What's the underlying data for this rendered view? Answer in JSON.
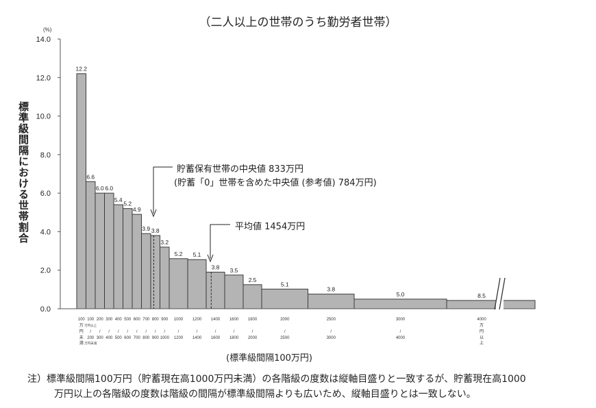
{
  "chart_data": {
    "type": "bar",
    "title": "（二人以上の世帯のうち勤労者世帯）",
    "ylabel": "標準級間隔における世帯割合",
    "yunit": "(%)",
    "xlabel": "(標準級間隔100万円)",
    "ylim": [
      0,
      14
    ],
    "yticks": [
      "0.0",
      "2.0",
      "4.0",
      "6.0",
      "8.0",
      "10.0",
      "12.0",
      "14.0"
    ],
    "bins": [
      {
        "from": 0,
        "to": 100,
        "label": "12.2",
        "height": 12.2,
        "tick": [
          "100",
          "万",
          "円",
          "未",
          "満"
        ]
      },
      {
        "from": 100,
        "to": 200,
        "label": "6.6",
        "height": 6.6,
        "tick": [
          "100",
          "万円以上",
          "/",
          "200",
          "万円未満"
        ]
      },
      {
        "from": 200,
        "to": 300,
        "label": "6.0",
        "height": 6.0,
        "tick": [
          "200",
          "",
          "/",
          "300",
          ""
        ]
      },
      {
        "from": 300,
        "to": 400,
        "label": "6.0",
        "height": 6.0,
        "tick": [
          "300",
          "",
          "/",
          "400",
          ""
        ]
      },
      {
        "from": 400,
        "to": 500,
        "label": "5.4",
        "height": 5.4,
        "tick": [
          "400",
          "",
          "/",
          "500",
          ""
        ]
      },
      {
        "from": 500,
        "to": 600,
        "label": "5.2",
        "height": 5.2,
        "tick": [
          "500",
          "",
          "/",
          "600",
          ""
        ]
      },
      {
        "from": 600,
        "to": 700,
        "label": "4.9",
        "height": 4.9,
        "tick": [
          "600",
          "",
          "/",
          "700",
          ""
        ]
      },
      {
        "from": 700,
        "to": 800,
        "label": "3.9",
        "height": 3.9,
        "tick": [
          "700",
          "",
          "/",
          "800",
          ""
        ]
      },
      {
        "from": 800,
        "to": 900,
        "label": "3.8",
        "height": 3.8,
        "tick": [
          "800",
          "",
          "/",
          "900",
          ""
        ]
      },
      {
        "from": 900,
        "to": 1000,
        "label": "3.2",
        "height": 3.2,
        "tick": [
          "900",
          "",
          "/",
          "1000",
          ""
        ]
      },
      {
        "from": 1000,
        "to": 1200,
        "label": "5.2",
        "height": 2.6,
        "tick": [
          "1000",
          "",
          "/",
          "1200",
          ""
        ]
      },
      {
        "from": 1200,
        "to": 1400,
        "label": "5.1",
        "height": 2.55,
        "tick": [
          "1200",
          "",
          "/",
          "1400",
          ""
        ]
      },
      {
        "from": 1400,
        "to": 1600,
        "label": "3.8",
        "height": 1.9,
        "tick": [
          "1400",
          "",
          "/",
          "1600",
          ""
        ]
      },
      {
        "from": 1600,
        "to": 1800,
        "label": "3.5",
        "height": 1.75,
        "tick": [
          "1600",
          "",
          "/",
          "1800",
          ""
        ]
      },
      {
        "from": 1800,
        "to": 2000,
        "label": "2.5",
        "height": 1.25,
        "tick": [
          "1800",
          "",
          "/",
          "2000",
          ""
        ]
      },
      {
        "from": 2000,
        "to": 2500,
        "label": "5.1",
        "height": 1.02,
        "tick": [
          "2000",
          "",
          "/",
          "2500",
          ""
        ]
      },
      {
        "from": 2500,
        "to": 3000,
        "label": "3.8",
        "height": 0.76,
        "tick": [
          "2500",
          "",
          "/",
          "3000",
          ""
        ]
      },
      {
        "from": 3000,
        "to": 4000,
        "label": "5.0",
        "height": 0.5,
        "tick": [
          "3000",
          "",
          "/",
          "4000",
          ""
        ]
      },
      {
        "from": 4000,
        "to": null,
        "label": "8.5",
        "height": 0.43,
        "tick": [
          "4000",
          "万",
          "円",
          "以",
          "上"
        ]
      }
    ],
    "annotations": {
      "median": {
        "value": 833,
        "line1": "貯蓄保有世帯の中央値 833万円",
        "line2": "(貯蓄「0」世帯を含めた中央値 (参考値)  784万円)"
      },
      "mean": {
        "value": 1454,
        "text": "平均値 1454万円"
      }
    },
    "colors": {
      "bar": "#b4b4b4",
      "edge": "#3a3a3a"
    }
  },
  "note": {
    "line1": "注）標準級間隔100万円（貯蓄現在高1000万円未満）の各階級の度数は縦軸目盛りと一致するが、貯蓄現在高1000",
    "line2": "万円以上の各階級の度数は階級の間隔が標準級間隔よりも広いため、縦軸目盛りとは一致しない。"
  }
}
